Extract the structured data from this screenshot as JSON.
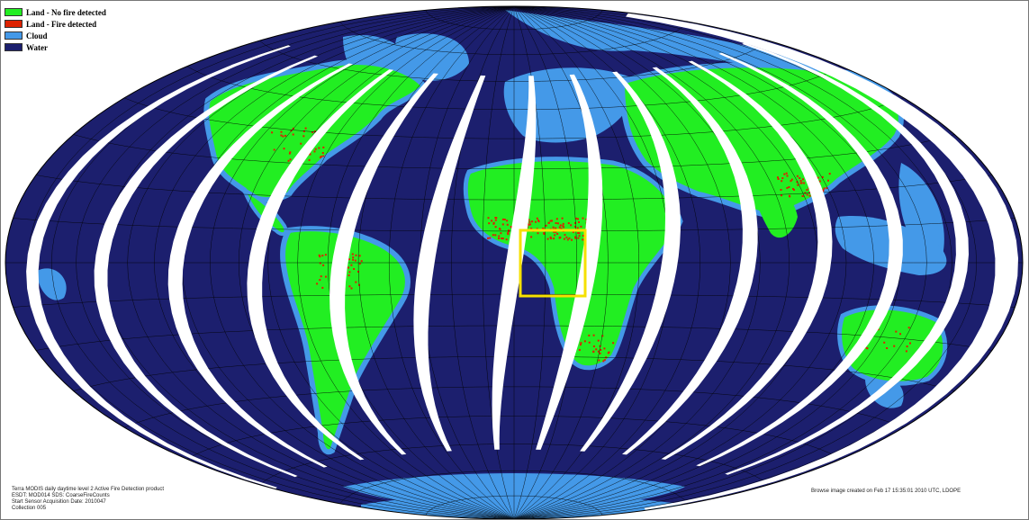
{
  "legend": [
    {
      "label": "Land - No fire detected",
      "color": "#22ee22"
    },
    {
      "label": "Land - Fire detected",
      "color": "#dd2200"
    },
    {
      "label": "Cloud",
      "color": "#4499e8"
    },
    {
      "label": "Water",
      "color": "#1c1f6e"
    }
  ],
  "colors": {
    "water": "#1c1f6e",
    "cloud": "#4499e8",
    "land": "#22ee22",
    "fire": "#dd2200",
    "no_data_swath": "#ffffff",
    "graticule": "#000000",
    "highlight_box": "#f5e000"
  },
  "projection": "Hammer-Aitoff (global, elliptical)",
  "footer_left": {
    "line1": "Terra MODIS daily daytime level 2 Active Fire Detection product",
    "line2": "ESDT: MOD014    SDS: CoarseFireCounts",
    "line3": "Start Sensor Acquisition Date: 2010047",
    "line4": "Collection 005"
  },
  "footer_right": "Browse image created on Feb 17 15:35:01 2010 UTC, LDOPE"
}
